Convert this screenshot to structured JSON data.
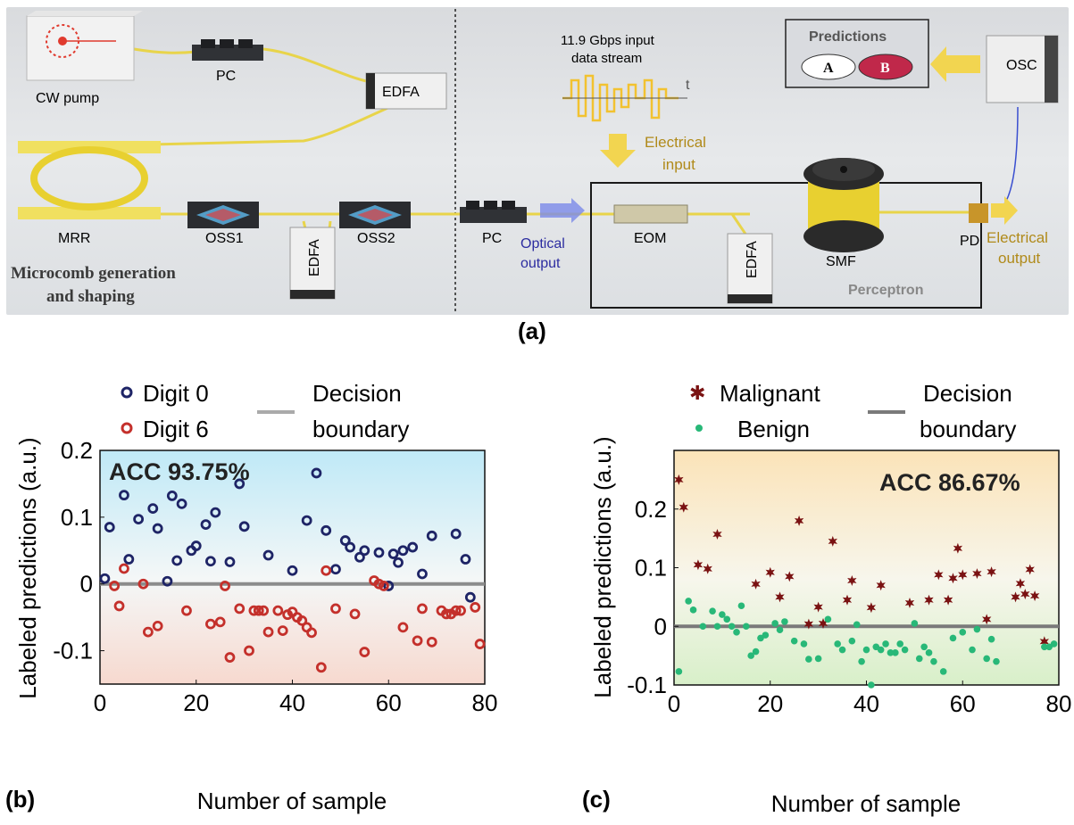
{
  "panel_a": {
    "caption": "(a)",
    "components": {
      "cw_pump": "CW pump",
      "pc_top": "PC",
      "edfa_top": "EDFA",
      "mrr": "MRR",
      "oss1": "OSS1",
      "edfa_bottom_left": "EDFA",
      "oss2": "OSS2",
      "section_label_line1": "Microcomb generation",
      "section_label_line2": "and shaping",
      "pc_right": "PC",
      "optical_output_line1": "Optical",
      "optical_output_line2": "output",
      "input_line1": "11.9 Gbps input",
      "input_line2": "data stream",
      "time_symbol": "t",
      "electrical_input_line1": "Electrical",
      "electrical_input_line2": "input",
      "eom": "EOM",
      "edfa_right": "EDFA",
      "smf": "SMF",
      "pd": "PD",
      "electrical_output_line1": "Electrical",
      "electrical_output_line2": "output",
      "perceptron": "Perceptron",
      "predictions": "Predictions",
      "class_a": "A",
      "class_b": "B",
      "osc": "OSC"
    },
    "colors": {
      "fiber": "#e8d44a",
      "optical_label": "#2c2ca0",
      "electrical_label": "#b08a1a",
      "signal": "#f2c230",
      "class_b_fill": "#c0284a"
    }
  },
  "chart_data": [
    {
      "panel": "(b)",
      "type": "scatter",
      "title": "",
      "annotation": "ACC 93.75%",
      "xlabel": "Number of sample",
      "ylabel": "Labeled predictions (a.u.)",
      "xlim": [
        0,
        80
      ],
      "ylim": [
        -0.15,
        0.2
      ],
      "xticks": [
        "0",
        "20",
        "40",
        "60",
        "80"
      ],
      "yticks": [
        "0.2",
        "0.1",
        "0",
        "-0.1"
      ],
      "ytick_values": [
        0.2,
        0.1,
        0,
        -0.1
      ],
      "xtick_values": [
        0,
        20,
        40,
        60,
        80
      ],
      "decision_boundary": 0,
      "legend": [
        "Digit 0",
        "Digit 6",
        "Decision boundary"
      ],
      "legend_position": "top",
      "colors": {
        "series_a": "#1e2466",
        "series_b": "#c4302b",
        "boundary": "#8c8c8c",
        "bg_top": "#bfe9f7",
        "bg_bottom": "#f7d9cf"
      },
      "series": [
        {
          "name": "Digit 0",
          "marker": "open-circle",
          "points": [
            [
              1,
              0.008
            ],
            [
              2,
              0.085
            ],
            [
              5,
              0.133
            ],
            [
              6,
              0.037
            ],
            [
              8,
              0.097
            ],
            [
              11,
              0.113
            ],
            [
              12,
              0.083
            ],
            [
              14,
              0.004
            ],
            [
              15,
              0.132
            ],
            [
              16,
              0.035
            ],
            [
              17,
              0.12
            ],
            [
              19,
              0.05
            ],
            [
              20,
              0.057
            ],
            [
              22,
              0.089
            ],
            [
              23,
              0.034
            ],
            [
              24,
              0.107
            ],
            [
              27,
              0.033
            ],
            [
              29,
              0.15
            ],
            [
              30,
              0.086
            ],
            [
              35,
              0.043
            ],
            [
              40,
              0.02
            ],
            [
              43,
              0.095
            ],
            [
              45,
              0.166
            ],
            [
              47,
              0.08
            ],
            [
              49,
              0.022
            ],
            [
              51,
              0.065
            ],
            [
              52,
              0.055
            ],
            [
              54,
              0.04
            ],
            [
              55,
              0.05
            ],
            [
              58,
              0.047
            ],
            [
              60,
              -0.003
            ],
            [
              61,
              0.045
            ],
            [
              62,
              0.032
            ],
            [
              63,
              0.05
            ],
            [
              65,
              0.055
            ],
            [
              67,
              0.015
            ],
            [
              69,
              0.072
            ],
            [
              74,
              0.075
            ],
            [
              76,
              0.037
            ],
            [
              77,
              -0.02
            ]
          ]
        },
        {
          "name": "Digit 6",
          "marker": "open-circle",
          "points": [
            [
              3,
              -0.003
            ],
            [
              4,
              -0.033
            ],
            [
              5,
              0.023
            ],
            [
              9,
              0.0
            ],
            [
              10,
              -0.072
            ],
            [
              12,
              -0.063
            ],
            [
              18,
              -0.04
            ],
            [
              23,
              -0.06
            ],
            [
              25,
              -0.057
            ],
            [
              26,
              -0.003
            ],
            [
              27,
              -0.11
            ],
            [
              29,
              -0.037
            ],
            [
              31,
              -0.1
            ],
            [
              32,
              -0.04
            ],
            [
              33,
              -0.04
            ],
            [
              34,
              -0.04
            ],
            [
              35,
              -0.072
            ],
            [
              37,
              -0.04
            ],
            [
              38,
              -0.07
            ],
            [
              39,
              -0.046
            ],
            [
              40,
              -0.042
            ],
            [
              41,
              -0.05
            ],
            [
              42,
              -0.055
            ],
            [
              43,
              -0.065
            ],
            [
              44,
              -0.073
            ],
            [
              46,
              -0.125
            ],
            [
              47,
              0.02
            ],
            [
              49,
              -0.037
            ],
            [
              53,
              -0.045
            ],
            [
              55,
              -0.102
            ],
            [
              57,
              0.005
            ],
            [
              58,
              0.0
            ],
            [
              59,
              -0.003
            ],
            [
              63,
              -0.065
            ],
            [
              66,
              -0.085
            ],
            [
              67,
              -0.037
            ],
            [
              69,
              -0.087
            ],
            [
              71,
              -0.04
            ],
            [
              72,
              -0.045
            ],
            [
              73,
              -0.045
            ],
            [
              74,
              -0.04
            ],
            [
              75,
              -0.04
            ],
            [
              78,
              -0.035
            ],
            [
              79,
              -0.09
            ]
          ]
        }
      ]
    },
    {
      "panel": "(c)",
      "type": "scatter",
      "title": "",
      "annotation": "ACC 86.67%",
      "xlabel": "Number of sample",
      "ylabel": "Labeled predictions (a.u.)",
      "xlim": [
        0,
        80
      ],
      "ylim": [
        -0.1,
        0.3
      ],
      "xticks": [
        "0",
        "20",
        "40",
        "60",
        "80"
      ],
      "yticks": [
        "0.2",
        "0.1",
        "0",
        "-0.1"
      ],
      "ytick_values": [
        0.2,
        0.1,
        0,
        -0.1
      ],
      "xtick_values": [
        0,
        20,
        40,
        60,
        80
      ],
      "decision_boundary": 0,
      "legend": [
        "Malignant",
        "Benign",
        "Decision boundary"
      ],
      "legend_position": "top",
      "colors": {
        "series_a": "#7a1212",
        "series_b": "#28b878",
        "boundary": "#7a7a7a",
        "bg_top": "#fbe3b8",
        "bg_bottom": "#d8efc9"
      },
      "series": [
        {
          "name": "Malignant",
          "marker": "star",
          "points": [
            [
              1,
              0.25
            ],
            [
              2,
              0.203
            ],
            [
              5,
              0.105
            ],
            [
              7,
              0.098
            ],
            [
              9,
              0.157
            ],
            [
              17,
              0.072
            ],
            [
              20,
              0.092
            ],
            [
              22,
              0.05
            ],
            [
              24,
              0.085
            ],
            [
              26,
              0.18
            ],
            [
              28,
              0.004
            ],
            [
              30,
              0.033
            ],
            [
              31,
              0.005
            ],
            [
              33,
              0.145
            ],
            [
              36,
              0.045
            ],
            [
              37,
              0.078
            ],
            [
              41,
              0.032
            ],
            [
              43,
              0.07
            ],
            [
              49,
              0.04
            ],
            [
              53,
              0.045
            ],
            [
              55,
              0.088
            ],
            [
              57,
              0.045
            ],
            [
              58,
              0.082
            ],
            [
              59,
              0.133
            ],
            [
              60,
              0.088
            ],
            [
              63,
              0.09
            ],
            [
              65,
              0.012
            ],
            [
              66,
              0.093
            ],
            [
              71,
              0.05
            ],
            [
              72,
              0.073
            ],
            [
              73,
              0.055
            ],
            [
              74,
              0.097
            ],
            [
              75,
              0.052
            ],
            [
              77,
              -0.026
            ]
          ]
        },
        {
          "name": "Benign",
          "marker": "dot",
          "points": [
            [
              1,
              -0.077
            ],
            [
              3,
              0.043
            ],
            [
              4,
              0.028
            ],
            [
              6,
              0.0
            ],
            [
              8,
              0.026
            ],
            [
              9,
              0.0
            ],
            [
              10,
              0.02
            ],
            [
              11,
              0.012
            ],
            [
              12,
              0.0
            ],
            [
              13,
              -0.01
            ],
            [
              14,
              0.035
            ],
            [
              15,
              0.0
            ],
            [
              16,
              -0.05
            ],
            [
              17,
              -0.043
            ],
            [
              18,
              -0.02
            ],
            [
              19,
              -0.015
            ],
            [
              21,
              0.005
            ],
            [
              22,
              -0.006
            ],
            [
              23,
              0.008
            ],
            [
              25,
              -0.025
            ],
            [
              27,
              -0.03
            ],
            [
              28,
              -0.056
            ],
            [
              30,
              -0.055
            ],
            [
              32,
              0.012
            ],
            [
              34,
              -0.03
            ],
            [
              35,
              -0.04
            ],
            [
              37,
              -0.025
            ],
            [
              38,
              0.003
            ],
            [
              39,
              -0.06
            ],
            [
              40,
              -0.04
            ],
            [
              41,
              -0.1
            ],
            [
              42,
              -0.035
            ],
            [
              43,
              -0.04
            ],
            [
              44,
              -0.03
            ],
            [
              45,
              -0.045
            ],
            [
              46,
              -0.045
            ],
            [
              47,
              -0.03
            ],
            [
              48,
              -0.04
            ],
            [
              50,
              0.005
            ],
            [
              51,
              -0.055
            ],
            [
              52,
              -0.035
            ],
            [
              53,
              -0.045
            ],
            [
              54,
              -0.06
            ],
            [
              56,
              -0.077
            ],
            [
              58,
              -0.02
            ],
            [
              60,
              -0.01
            ],
            [
              62,
              -0.04
            ],
            [
              63,
              -0.005
            ],
            [
              65,
              -0.055
            ],
            [
              66,
              -0.022
            ],
            [
              67,
              -0.06
            ],
            [
              77,
              -0.035
            ],
            [
              78,
              -0.035
            ],
            [
              79,
              -0.03
            ]
          ]
        }
      ]
    }
  ]
}
